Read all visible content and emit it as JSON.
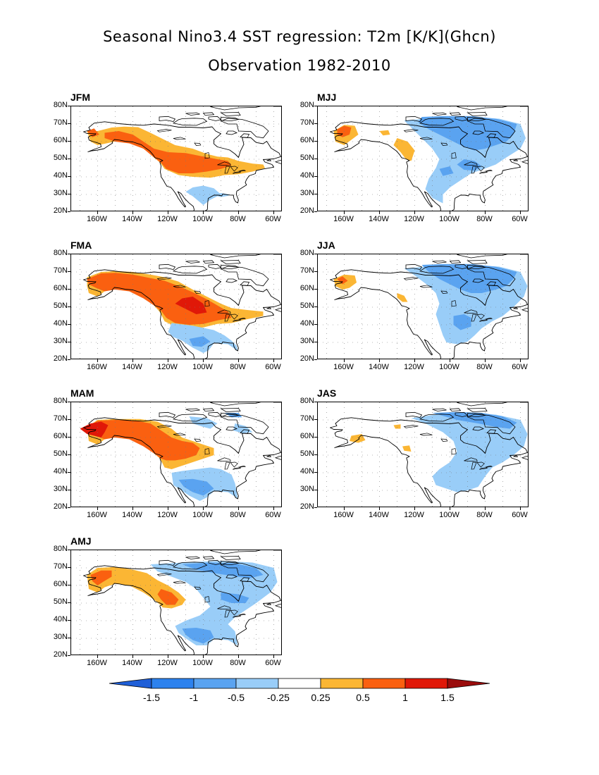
{
  "title_line1": "Seasonal Nino3.4 SST regression: T2m [K/K](Ghcn)",
  "title_line2": "Observation 1982-2010",
  "lat_labels": [
    "80N",
    "70N",
    "60N",
    "50N",
    "40N",
    "30N",
    "20N"
  ],
  "lon_labels": [
    "160W",
    "140W",
    "120W",
    "100W",
    "80W",
    "60W"
  ],
  "colors": {
    "lt_m1_5": "#1f5fd8",
    "m1_5_m1": "#2d82ee",
    "m1_m05": "#5aa3f0",
    "m05_m025": "#99cdf8",
    "neutral": "#ffffff",
    "p025_p05": "#fbb634",
    "p05_p1": "#fa6010",
    "p1_p15": "#e01808",
    "gt_p15": "#9a0c0c"
  },
  "colorbar": {
    "levels": [
      "-1.5",
      "-1",
      "-0.5",
      "-0.25",
      "0.25",
      "0.5",
      "1",
      "1.5"
    ],
    "colors": [
      "#1f5fd8",
      "#2d82ee",
      "#5aa3f0",
      "#99cdf8",
      "#ffffff",
      "#fbb634",
      "#fa6010",
      "#e01808",
      "#9a0c0c"
    ]
  },
  "panels": [
    {
      "label": "JFM"
    },
    {
      "label": "MJJ"
    },
    {
      "label": "FMA"
    },
    {
      "label": "JJA"
    },
    {
      "label": "MAM"
    },
    {
      "label": "JAS"
    },
    {
      "label": "AMJ"
    }
  ]
}
